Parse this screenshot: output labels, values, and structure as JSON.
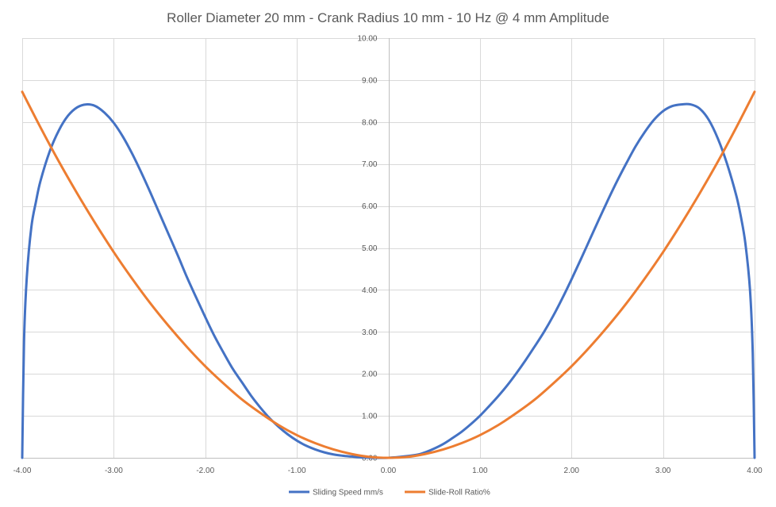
{
  "chart_data": {
    "type": "line",
    "title": "Roller Diameter 20 mm - Crank Radius 10 mm - 10 Hz @ 4 mm Amplitude",
    "xlabel": "",
    "ylabel": "",
    "xlim": [
      -4,
      4
    ],
    "ylim": [
      0,
      10
    ],
    "x_ticks": [
      "-4.00",
      "-3.00",
      "-2.00",
      "-1.00",
      "0.00",
      "1.00",
      "2.00",
      "3.00",
      "4.00"
    ],
    "y_ticks": [
      "0.00",
      "1.00",
      "2.00",
      "3.00",
      "4.00",
      "5.00",
      "6.00",
      "7.00",
      "8.00",
      "9.00",
      "10.00"
    ],
    "grid": true,
    "legend_position": "bottom",
    "series": [
      {
        "name": "Sliding Speed mm/s",
        "color": "#4472c4",
        "points": [
          [
            -4.0,
            0.0
          ],
          [
            -3.98,
            2.8
          ],
          [
            -3.95,
            4.3
          ],
          [
            -3.9,
            5.5
          ],
          [
            -3.85,
            6.1
          ],
          [
            -3.8,
            6.6
          ],
          [
            -3.7,
            7.3
          ],
          [
            -3.6,
            7.8
          ],
          [
            -3.5,
            8.15
          ],
          [
            -3.4,
            8.35
          ],
          [
            -3.3,
            8.42
          ],
          [
            -3.2,
            8.38
          ],
          [
            -3.1,
            8.22
          ],
          [
            -3.0,
            7.98
          ],
          [
            -2.9,
            7.65
          ],
          [
            -2.8,
            7.25
          ],
          [
            -2.7,
            6.8
          ],
          [
            -2.6,
            6.32
          ],
          [
            -2.5,
            5.82
          ],
          [
            -2.4,
            5.32
          ],
          [
            -2.3,
            4.82
          ],
          [
            -2.2,
            4.3
          ],
          [
            -2.1,
            3.82
          ],
          [
            -2.0,
            3.35
          ],
          [
            -1.9,
            2.9
          ],
          [
            -1.8,
            2.5
          ],
          [
            -1.7,
            2.12
          ],
          [
            -1.6,
            1.8
          ],
          [
            -1.5,
            1.48
          ],
          [
            -1.4,
            1.2
          ],
          [
            -1.3,
            0.95
          ],
          [
            -1.2,
            0.74
          ],
          [
            -1.1,
            0.56
          ],
          [
            -1.0,
            0.41
          ],
          [
            -0.9,
            0.29
          ],
          [
            -0.8,
            0.2
          ],
          [
            -0.7,
            0.13
          ],
          [
            -0.6,
            0.08
          ],
          [
            -0.5,
            0.05
          ],
          [
            -0.4,
            0.03
          ],
          [
            -0.3,
            0.01
          ],
          [
            0.0,
            0.0
          ],
          [
            0.3,
            0.07
          ],
          [
            0.4,
            0.13
          ],
          [
            0.5,
            0.22
          ],
          [
            0.6,
            0.33
          ],
          [
            0.7,
            0.47
          ],
          [
            0.8,
            0.62
          ],
          [
            0.9,
            0.8
          ],
          [
            1.0,
            1.0
          ],
          [
            1.1,
            1.23
          ],
          [
            1.2,
            1.47
          ],
          [
            1.3,
            1.73
          ],
          [
            1.4,
            2.02
          ],
          [
            1.5,
            2.33
          ],
          [
            1.6,
            2.66
          ],
          [
            1.7,
            3.0
          ],
          [
            1.8,
            3.38
          ],
          [
            1.9,
            3.8
          ],
          [
            2.0,
            4.25
          ],
          [
            2.1,
            4.72
          ],
          [
            2.2,
            5.2
          ],
          [
            2.3,
            5.68
          ],
          [
            2.4,
            6.15
          ],
          [
            2.5,
            6.6
          ],
          [
            2.6,
            7.02
          ],
          [
            2.7,
            7.42
          ],
          [
            2.8,
            7.76
          ],
          [
            2.9,
            8.05
          ],
          [
            3.0,
            8.26
          ],
          [
            3.1,
            8.38
          ],
          [
            3.2,
            8.42
          ],
          [
            3.3,
            8.42
          ],
          [
            3.4,
            8.32
          ],
          [
            3.5,
            8.05
          ],
          [
            3.6,
            7.6
          ],
          [
            3.7,
            7.0
          ],
          [
            3.8,
            6.25
          ],
          [
            3.85,
            5.75
          ],
          [
            3.9,
            5.1
          ],
          [
            3.95,
            4.0
          ],
          [
            3.98,
            2.5
          ],
          [
            4.0,
            0.0
          ]
        ]
      },
      {
        "name": "Slide-Roll Ratio%",
        "color": "#ed7d31",
        "points": [
          [
            -4.0,
            8.72
          ],
          [
            -3.8,
            7.87
          ],
          [
            -3.6,
            7.06
          ],
          [
            -3.4,
            6.3
          ],
          [
            -3.2,
            5.58
          ],
          [
            -3.0,
            4.9
          ],
          [
            -2.8,
            4.27
          ],
          [
            -2.6,
            3.68
          ],
          [
            -2.4,
            3.14
          ],
          [
            -2.2,
            2.64
          ],
          [
            -2.0,
            2.18
          ],
          [
            -1.8,
            1.77
          ],
          [
            -1.6,
            1.39
          ],
          [
            -1.4,
            1.07
          ],
          [
            -1.2,
            0.78
          ],
          [
            -1.0,
            0.54
          ],
          [
            -0.8,
            0.35
          ],
          [
            -0.6,
            0.2
          ],
          [
            -0.4,
            0.09
          ],
          [
            -0.2,
            0.02
          ],
          [
            0.0,
            0.0
          ],
          [
            0.2,
            0.02
          ],
          [
            0.4,
            0.09
          ],
          [
            0.6,
            0.2
          ],
          [
            0.8,
            0.35
          ],
          [
            1.0,
            0.54
          ],
          [
            1.2,
            0.78
          ],
          [
            1.4,
            1.07
          ],
          [
            1.6,
            1.39
          ],
          [
            1.8,
            1.77
          ],
          [
            2.0,
            2.18
          ],
          [
            2.2,
            2.64
          ],
          [
            2.4,
            3.14
          ],
          [
            2.6,
            3.68
          ],
          [
            2.8,
            4.27
          ],
          [
            3.0,
            4.9
          ],
          [
            3.2,
            5.58
          ],
          [
            3.4,
            6.3
          ],
          [
            3.6,
            7.06
          ],
          [
            3.8,
            7.87
          ],
          [
            4.0,
            8.72
          ]
        ]
      }
    ]
  }
}
